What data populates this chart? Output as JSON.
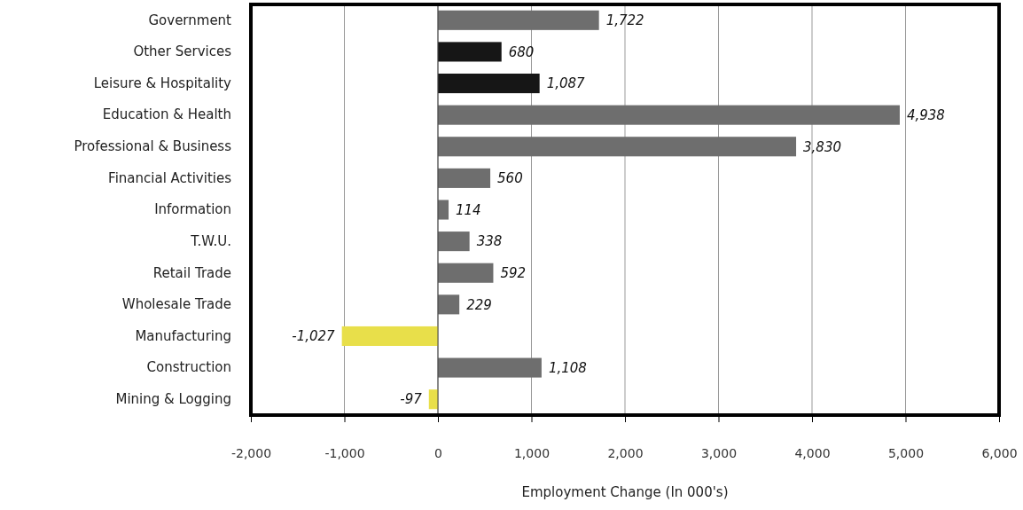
{
  "chart_data": {
    "type": "bar",
    "orientation": "horizontal",
    "xlabel": "Employment Change (In 000's)",
    "categories": [
      "Government",
      "Other Services",
      "Leisure & Hospitality",
      "Education & Health",
      "Professional & Business",
      "Financial Activities",
      "Information",
      "T.W.U.",
      "Retail Trade",
      "Wholesale Trade",
      "Manufacturing",
      "Construction",
      "Mining & Logging"
    ],
    "values": [
      1722,
      680,
      1087,
      4938,
      3830,
      560,
      114,
      338,
      592,
      229,
      -1027,
      1108,
      -97
    ],
    "colors": [
      "#6e6e6e",
      "#161616",
      "#161616",
      "#6e6e6e",
      "#6e6e6e",
      "#6e6e6e",
      "#6e6e6e",
      "#6e6e6e",
      "#6e6e6e",
      "#6e6e6e",
      "#e8df4a",
      "#6e6e6e",
      "#e8df4a"
    ],
    "xlim": [
      -2000,
      6000
    ],
    "xticks": [
      {
        "value": -2000,
        "label": "-2,000"
      },
      {
        "value": -1000,
        "label": "-1,000"
      },
      0,
      {
        "value": 1000,
        "label": "1,000"
      },
      {
        "value": 2000,
        "label": "2,000"
      },
      {
        "value": 3000,
        "label": "3,000"
      },
      {
        "value": 4000,
        "label": "4,000"
      },
      {
        "value": 5000,
        "label": "5,000"
      },
      {
        "value": 6000,
        "label": "6,000"
      }
    ],
    "value_labels": [
      "1,722",
      "680",
      "1,087",
      "4,938",
      "3,830",
      "560",
      "114",
      "338",
      "592",
      "229",
      "-1,027",
      "1,108",
      "-97"
    ],
    "grid": "x"
  }
}
